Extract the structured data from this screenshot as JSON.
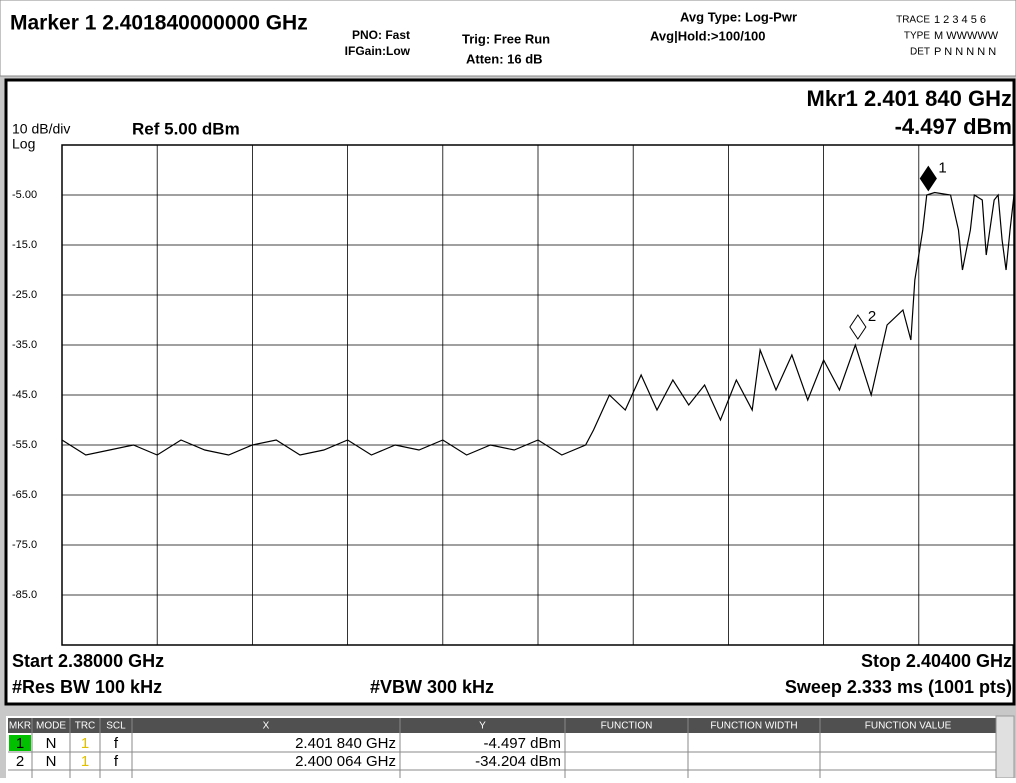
{
  "header": {
    "marker": "Marker 1 2.401840000000 GHz",
    "pno": "PNO: Fast",
    "ifgain": "IFGain:Low",
    "trig": "Trig: Free Run",
    "atten": "Atten: 16 dB",
    "avg_type": "Avg Type: Log-Pwr",
    "avg_hold": "Avg|Hold:>100/100",
    "trace_label": "TRACE",
    "trace_values": "1 2 3 4 5 6",
    "type_label": "TYPE",
    "type_values": "M WWWWW",
    "det_label": "DET",
    "det_values": "P N N N N N"
  },
  "chart_data": {
    "type": "line",
    "mkr_readout": "Mkr1 2.401 840 GHz",
    "mkr_value": "-4.497 dBm",
    "scale": "10 dB/div",
    "ref": "Ref 5.00 dBm",
    "log": "Log",
    "xlim": [
      2.38,
      2.404
    ],
    "ylim": [
      -95,
      5
    ],
    "yticks": [
      {
        "value": -5,
        "label": "-5.00"
      },
      {
        "value": -15,
        "label": "-15.0"
      },
      {
        "value": -25,
        "label": "-25.0"
      },
      {
        "value": -35,
        "label": "-35.0"
      },
      {
        "value": -45,
        "label": "-45.0"
      },
      {
        "value": -55,
        "label": "-55.0"
      },
      {
        "value": -65,
        "label": "-65.0"
      },
      {
        "value": -75,
        "label": "-75.0"
      },
      {
        "value": -85,
        "label": "-85.0"
      }
    ],
    "xticks": [
      2.38,
      2.3824,
      2.3848,
      2.3872,
      2.3896,
      2.392,
      2.3944,
      2.3968,
      2.3992,
      2.4016,
      2.404
    ],
    "grid": true,
    "series": [
      {
        "color": "#000000",
        "x": [
          2.38,
          2.3806,
          2.3812,
          2.3818,
          2.3824,
          2.383,
          2.3836,
          2.3842,
          2.3848,
          2.3854,
          2.386,
          2.3866,
          2.3872,
          2.3878,
          2.3884,
          2.389,
          2.3896,
          2.3902,
          2.3908,
          2.3914,
          2.392,
          2.3926,
          2.3932,
          2.3934,
          2.3938,
          2.3942,
          2.3946,
          2.395,
          2.3954,
          2.3958,
          2.3962,
          2.3966,
          2.397,
          2.3974,
          2.3976,
          2.398,
          2.3984,
          2.3988,
          2.3992,
          2.3996,
          2.4,
          2.4004,
          2.4008,
          2.4012,
          2.4014,
          2.4015,
          2.4017,
          2.4018,
          2.402,
          2.4024,
          2.4026,
          2.4027,
          2.4029,
          2.403,
          2.4032,
          2.4033,
          2.4035,
          2.4036,
          2.4037,
          2.4038,
          2.4039,
          2.404
        ],
        "values": [
          -54,
          -57,
          -56,
          -55,
          -57,
          -54,
          -56,
          -57,
          -55,
          -54,
          -57,
          -56,
          -54,
          -57,
          -55,
          -56,
          -54,
          -57,
          -55,
          -56,
          -54,
          -57,
          -55,
          -52,
          -45,
          -48,
          -41,
          -48,
          -42,
          -47,
          -43,
          -50,
          -42,
          -48,
          -36,
          -44,
          -37,
          -46,
          -38,
          -44,
          -35,
          -45,
          -31,
          -28,
          -34,
          -22,
          -12,
          -5,
          -4.5,
          -5,
          -12,
          -20,
          -12,
          -5,
          -6,
          -17,
          -6,
          -5,
          -14,
          -20,
          -12,
          -5
        ]
      }
    ],
    "markers": [
      {
        "label": "1",
        "x": 2.40184,
        "y": -4.497
      },
      {
        "label": "2",
        "x": 2.400064,
        "y": -34.204
      }
    ]
  },
  "footer": {
    "start": "Start 2.38000 GHz",
    "stop": "Stop 2.40400 GHz",
    "rbw": "#Res BW 100 kHz",
    "vbw": "#VBW 300 kHz",
    "sweep": "Sweep  2.333 ms (1001 pts)"
  },
  "table": {
    "columns": [
      "MKR",
      "MODE",
      "TRC",
      "SCL",
      "X",
      "Y",
      "FUNCTION",
      "FUNCTION WIDTH",
      "FUNCTION VALUE"
    ],
    "rows": [
      [
        "1",
        "N",
        "1",
        "f",
        "2.401 840 GHz",
        "-4.497 dBm"
      ],
      [
        "2",
        "N",
        "1",
        "f",
        "2.400 064 GHz",
        "-34.204 dBm"
      ]
    ]
  }
}
